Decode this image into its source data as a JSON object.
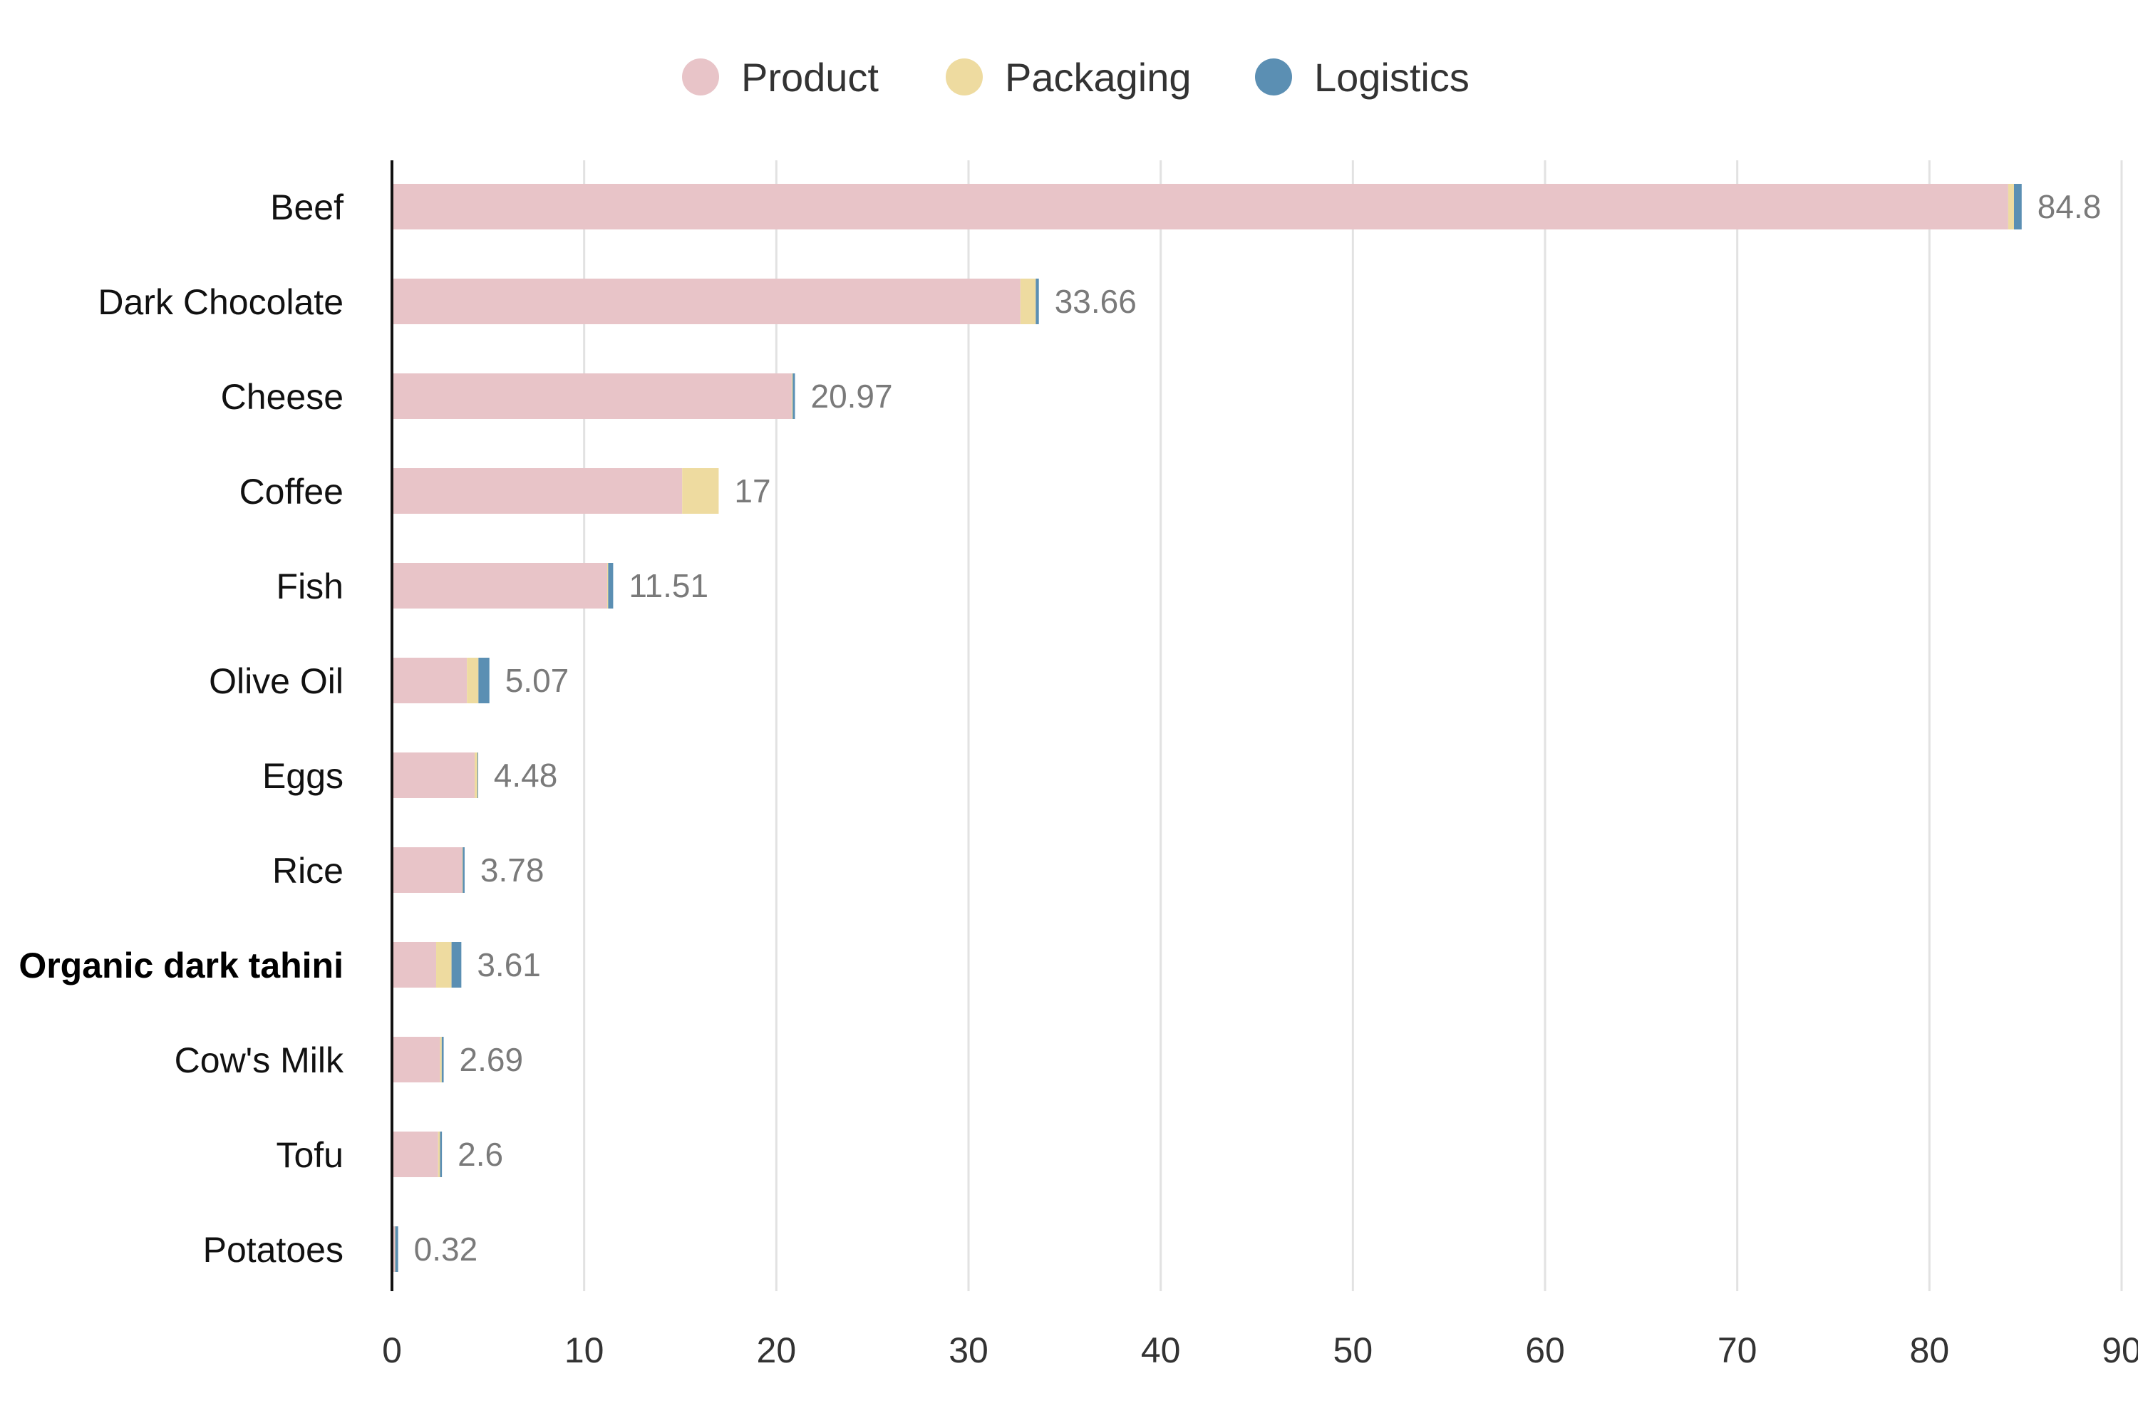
{
  "chart_data": {
    "type": "bar",
    "orientation": "horizontal",
    "stacked": true,
    "title": "",
    "xlabel": "",
    "ylabel": "",
    "xlim": [
      0,
      90
    ],
    "x_ticks": [
      "0",
      "10",
      "20",
      "30",
      "40",
      "50",
      "60",
      "70",
      "80",
      "90"
    ],
    "grid": "vertical",
    "legend_position": "top-center",
    "categories": [
      "Beef",
      "Dark Chocolate",
      "Cheese",
      "Coffee",
      "Fish",
      "Olive Oil",
      "Eggs",
      "Rice",
      "Organic dark tahini",
      "Cow's Milk",
      "Tofu",
      "Potatoes"
    ],
    "highlighted_category": "Organic dark tahini",
    "series": [
      {
        "name": "Product",
        "color": "#e8c4c8",
        "values": [
          84.1,
          32.7,
          20.8,
          15.1,
          11.2,
          3.9,
          4.3,
          3.65,
          2.3,
          2.5,
          2.4,
          0.15
        ]
      },
      {
        "name": "Packaging",
        "color": "#eedba0",
        "values": [
          0.3,
          0.8,
          0.05,
          1.9,
          0.05,
          0.6,
          0.15,
          0.03,
          0.8,
          0.09,
          0.1,
          0.02
        ]
      },
      {
        "name": "Logistics",
        "color": "#5b8fb3",
        "values": [
          0.4,
          0.16,
          0.12,
          0.0,
          0.26,
          0.57,
          0.03,
          0.1,
          0.51,
          0.1,
          0.1,
          0.15
        ]
      }
    ],
    "totals": [
      "84.8",
      "33.66",
      "20.97",
      "17",
      "11.51",
      "5.07",
      "4.48",
      "3.78",
      "3.61",
      "2.69",
      "2.6",
      "0.32"
    ]
  }
}
